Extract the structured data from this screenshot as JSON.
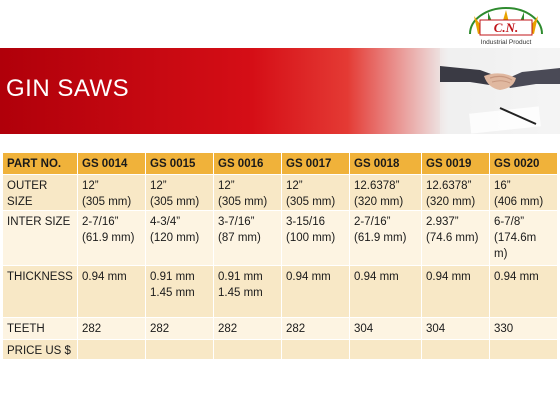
{
  "logo": {
    "initials": "C.N.",
    "tagline": "Industrial Product"
  },
  "banner": {
    "title": "GIN SAWS"
  },
  "colors": {
    "header_bg": "#f0b23a",
    "row_bg": "#f8e8c6",
    "row_alt_bg": "#fdf4e2",
    "banner_red": "#d50e16"
  },
  "table": {
    "header": {
      "label": "PART NO.",
      "parts": [
        "GS 0014",
        "GS 0015",
        "GS 0016",
        "GS 0017",
        "GS 0018",
        "GS 0019",
        "GS 0020"
      ]
    },
    "outer_size": {
      "label_1": "OUTER",
      "label_2": "SIZE",
      "cells": [
        [
          "12”",
          "(305 mm)"
        ],
        [
          "12”",
          "(305 mm)"
        ],
        [
          "12”",
          "(305 mm)"
        ],
        [
          "12”",
          "(305 mm)"
        ],
        [
          "12.6378”",
          "(320 mm)"
        ],
        [
          "12.6378”",
          "(320 mm)"
        ],
        [
          "16”",
          "(406 mm)"
        ]
      ]
    },
    "inter_size": {
      "label": "INTER SIZE",
      "cells": [
        [
          "2-7/16”",
          "(61.9 mm)",
          ""
        ],
        [
          "4-3/4”",
          "(120 mm)",
          ""
        ],
        [
          "3-7/16”",
          "(87 mm)",
          ""
        ],
        [
          "3-15/16",
          "(100 mm)",
          ""
        ],
        [
          "2-7/16”",
          "(61.9 mm)",
          ""
        ],
        [
          "2.937”",
          "(74.6 mm)",
          ""
        ],
        [
          "6-7/8”",
          "(174.6m",
          "m)"
        ]
      ]
    },
    "thickness": {
      "label": "THICKNESS",
      "cells": [
        [
          "0.94 mm",
          ""
        ],
        [
          "0.91 mm",
          "1.45 mm"
        ],
        [
          "0.91 mm",
          "1.45 mm"
        ],
        [
          "0.94 mm",
          ""
        ],
        [
          "0.94 mm",
          ""
        ],
        [
          "0.94 mm",
          ""
        ],
        [
          "0.94 mm",
          ""
        ]
      ]
    },
    "teeth": {
      "label": "TEETH",
      "cells": [
        "282",
        "282",
        "282",
        "282",
        "304",
        "304",
        "330"
      ]
    },
    "price": {
      "label": "PRICE US $",
      "cells": [
        "",
        "",
        "",
        "",
        "",
        "",
        ""
      ]
    }
  }
}
